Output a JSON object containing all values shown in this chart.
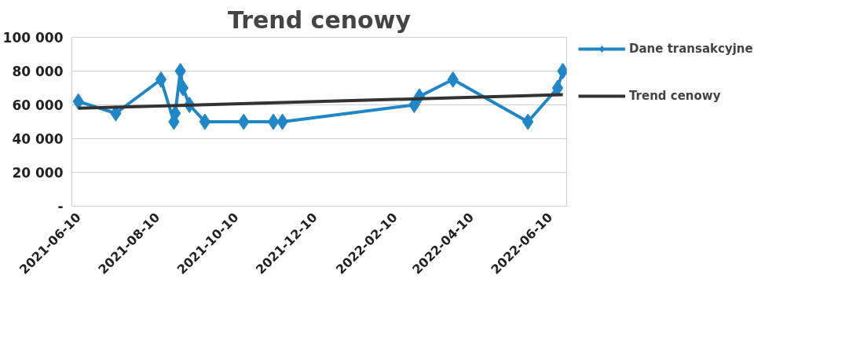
{
  "chart_data": {
    "type": "line",
    "title": "Trend cenowy",
    "xlim": [
      "2021-06-05",
      "2022-06-23"
    ],
    "xticks": [
      {
        "value": "2021-06-10",
        "label": "2021-06-10"
      },
      {
        "value": "2021-08-10",
        "label": "2021-08-10"
      },
      {
        "value": "2021-10-10",
        "label": "2021-10-10"
      },
      {
        "value": "2021-12-10",
        "label": "2021-12-10"
      },
      {
        "value": "2022-02-10",
        "label": "2022-02-10"
      },
      {
        "value": "2022-04-10",
        "label": "2022-04-10"
      },
      {
        "value": "2022-06-10",
        "label": "2022-06-10"
      }
    ],
    "ylim": [
      0,
      100000
    ],
    "yticks": [
      {
        "value": 0,
        "label": "-"
      },
      {
        "value": 20000,
        "label": "20 000"
      },
      {
        "value": 40000,
        "label": "40 000"
      },
      {
        "value": 60000,
        "label": "60 000"
      },
      {
        "value": 80000,
        "label": "80 000"
      },
      {
        "value": 100000,
        "label": "100 000"
      }
    ],
    "grid": "y",
    "legend": "right",
    "series": [
      {
        "name": "Dane transakcyjne",
        "color": "#1f86c8",
        "marker": "diamond",
        "x": [
          "2021-06-10",
          "2021-07-09",
          "2021-08-13",
          "2021-08-23",
          "2021-08-24",
          "2021-08-28",
          "2021-08-30",
          "2021-09-04",
          "2021-09-16",
          "2021-10-16",
          "2021-11-08",
          "2021-11-15",
          "2022-02-25",
          "2022-03-01",
          "2022-03-27",
          "2022-05-24",
          "2022-06-16",
          "2022-06-20"
        ],
        "values": [
          62000,
          55000,
          75000,
          50000,
          55000,
          80000,
          70000,
          60000,
          50000,
          50000,
          50000,
          50000,
          60000,
          65000,
          75000,
          50000,
          70000,
          80000
        ]
      },
      {
        "name": "Trend cenowy",
        "color": "#333333",
        "marker": "none",
        "x": [
          "2021-06-10",
          "2022-06-20"
        ],
        "values": [
          58000,
          66000
        ]
      }
    ]
  }
}
